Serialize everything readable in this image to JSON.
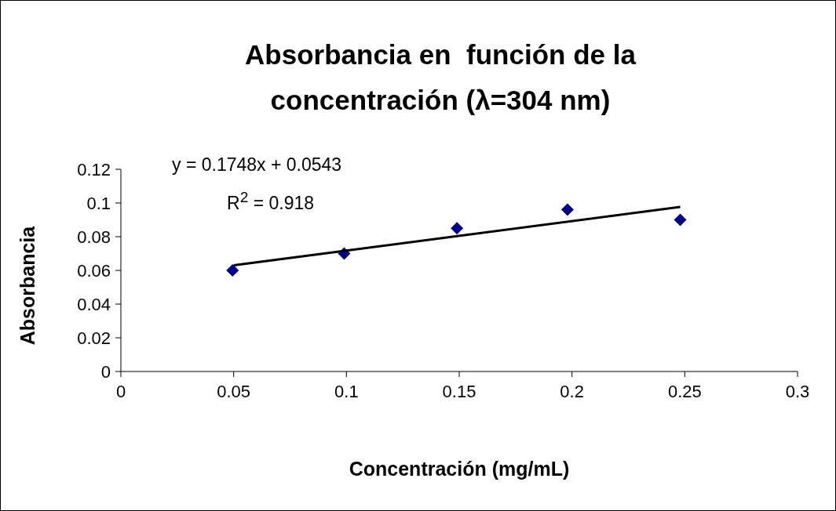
{
  "chart_data": {
    "type": "scatter",
    "title": "Absorbancia en  función de la\nconcentración (λ=304 nm)",
    "xlabel": "Concentración (mg/mL)",
    "ylabel": "Absorbancia",
    "annotations": [
      "y = 0.1748x + 0.0543",
      "R$^{2}$ = 0.918"
    ],
    "series": [
      {
        "color": "#000080",
        "marker": "diamond",
        "x": [
          0.0495,
          0.099,
          0.149,
          0.198,
          0.248
        ],
        "values": [
          0.06,
          0.07,
          0.085,
          0.096,
          0.09
        ]
      },
      {
        "type": "line",
        "color": "#000000",
        "x": [
          0.05,
          0.248
        ],
        "values": [
          0.063,
          0.0977
        ]
      }
    ],
    "xlim": [
      0,
      0.3
    ],
    "xticks": [
      0,
      0.05,
      0.1,
      0.15,
      0.2,
      0.25,
      0.3
    ],
    "ylim": [
      0,
      0.12
    ],
    "yticks": [
      0,
      0.02,
      0.04,
      0.06,
      0.08,
      0.1,
      0.12
    ],
    "grid": false,
    "legend": false
  }
}
